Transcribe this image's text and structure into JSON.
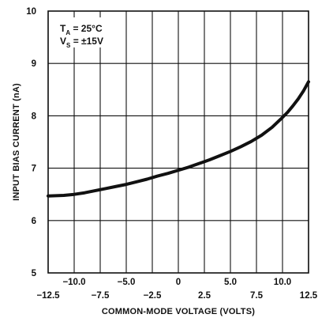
{
  "chart_data": {
    "type": "line",
    "xlabel": "COMMON-MODE VOLTAGE (VOLTS)",
    "ylabel": "INPUT BIAS CURRENT (nA)",
    "xlim": [
      -12.5,
      12.5
    ],
    "ylim": [
      5,
      10
    ],
    "x_ticks_top_row": [
      "−10.0",
      "−5.0",
      "0",
      "5.0",
      "10.0"
    ],
    "x_ticks_top_row_values": [
      -10,
      -5,
      0,
      5,
      10
    ],
    "x_ticks_bottom_row": [
      "−12.5",
      "−7.5",
      "−2.5",
      "2.5",
      "7.5",
      "12.5"
    ],
    "x_ticks_bottom_row_values": [
      -12.5,
      -7.5,
      -2.5,
      2.5,
      7.5,
      12.5
    ],
    "y_ticks": [
      "5",
      "6",
      "7",
      "8",
      "9",
      "10"
    ],
    "y_ticks_values": [
      5,
      6,
      7,
      8,
      9,
      10
    ],
    "grid": true,
    "annotation": {
      "line1_main": "T",
      "line1_sub": "A",
      "line1_rest": " = 25°C",
      "line2_main": "V",
      "line2_sub": "S",
      "line2_rest": " = ±15V"
    },
    "series": [
      {
        "x": [
          -12.5,
          -11,
          -10,
          -9,
          -8,
          -7,
          -6,
          -5,
          -4,
          -3,
          -2,
          -1,
          0,
          1,
          2,
          3,
          4,
          5,
          6,
          7,
          8,
          9,
          10,
          10.5,
          11,
          11.5,
          12,
          12.5
        ],
        "y": [
          6.47,
          6.48,
          6.5,
          6.53,
          6.57,
          6.61,
          6.65,
          6.69,
          6.74,
          6.79,
          6.85,
          6.9,
          6.96,
          7.02,
          7.09,
          7.16,
          7.24,
          7.32,
          7.41,
          7.51,
          7.63,
          7.78,
          7.97,
          8.07,
          8.19,
          8.32,
          8.47,
          8.65
        ]
      }
    ]
  }
}
